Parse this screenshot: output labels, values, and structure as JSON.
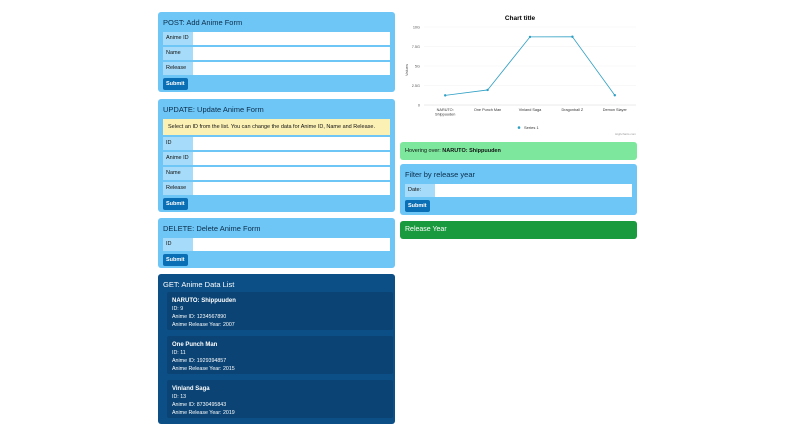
{
  "post": {
    "title": "POST: Add Anime Form",
    "fields": [
      "Anime ID",
      "Name",
      "Release"
    ],
    "submit": "Submit"
  },
  "update": {
    "title": "UPDATE: Update Anime Form",
    "note": "Select an ID from the list. You can change the data for Anime ID, Name and Release.",
    "fields": [
      "ID",
      "Anime ID",
      "Name",
      "Release"
    ],
    "submit": "Submit"
  },
  "delete": {
    "title": "DELETE: Delete Anime Form",
    "fields": [
      "ID"
    ],
    "submit": "Submit"
  },
  "get": {
    "title": "GET: Anime Data List",
    "items": [
      {
        "name": "NARUTO: Shippuuden",
        "id": "ID: 9",
        "anime_id": "Anime ID: 1234567890",
        "year": "Anime Release Year: 2007"
      },
      {
        "name": "One Punch Man",
        "id": "ID: 11",
        "anime_id": "Anime ID: 1929394857",
        "year": "Anime Release Year: 2015"
      },
      {
        "name": "Vinland Saga",
        "id": "ID: 13",
        "anime_id": "Anime ID: 8730495843",
        "year": "Anime Release Year: 2019"
      }
    ]
  },
  "hover": {
    "prefix": "Hovering over: ",
    "value": "NARUTO: Shippuuden"
  },
  "filter": {
    "title": "Filter by release year",
    "field": "Date:",
    "submit": "Submit"
  },
  "release_year": {
    "title": "Release Year"
  },
  "chart_data": {
    "type": "line",
    "title": "Chart title",
    "ylabel": "Values",
    "xlabel": "",
    "categories": [
      "NARUTO: Shippuuden",
      "One Punch Man",
      "Vinland Saga",
      "Dragonball Z",
      "Demon Slayer"
    ],
    "series": [
      {
        "name": "Series 1",
        "values": [
          1234567890,
          1929394857,
          8730495843,
          8750000000,
          1250000000
        ]
      }
    ],
    "ylim": [
      0,
      10000000000
    ],
    "yticks": [
      "0",
      "2.5G",
      "5G",
      "7.5G",
      "10G"
    ],
    "grid": true,
    "legend": "bottom",
    "credit": "Highcharts.com",
    "color": "#2f9fc4"
  }
}
